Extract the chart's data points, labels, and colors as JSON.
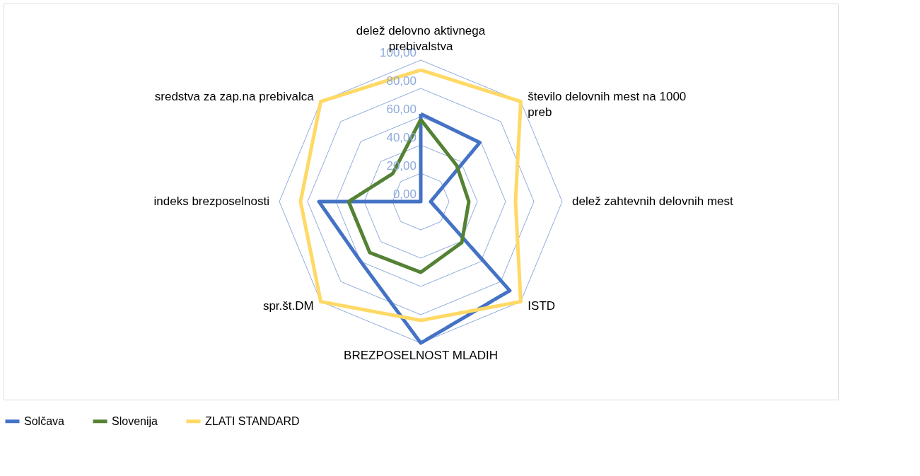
{
  "chart_data": {
    "type": "radar",
    "categories": [
      "delež delovno aktivnega prebivalstva",
      "število delovnih mest na 1000 preb",
      "delež zahtevnih delovnih mest",
      "ISTD",
      "BREZPOSELNOST MLADIH",
      "spr.št.DM",
      "indeks brezposelnosti",
      "sredstva za zap.na prebivalca"
    ],
    "series": [
      {
        "name": "Solčava",
        "color": "#4472c4",
        "values": [
          62,
          59,
          7,
          89,
          100,
          60,
          72,
          0
        ]
      },
      {
        "name": "Slovenija",
        "color": "#548235",
        "values": [
          58,
          36,
          34,
          41,
          50,
          51,
          51,
          28
        ]
      },
      {
        "name": "ZLATI STANDARD",
        "color": "#ffd966",
        "values": [
          93,
          100,
          67,
          100,
          84,
          100,
          85,
          100
        ]
      }
    ],
    "ylim": [
      0,
      100
    ],
    "yticks": [
      {
        "value": 0,
        "label": "0,00"
      },
      {
        "value": 20,
        "label": "20,00"
      },
      {
        "value": 40,
        "label": "40,00"
      },
      {
        "value": 60,
        "label": "60,00"
      },
      {
        "value": 80,
        "label": "80,00"
      },
      {
        "value": 100,
        "label": "100,00"
      }
    ],
    "grid": true,
    "legend": "bottom",
    "marker": "none",
    "line_style": "solid"
  }
}
